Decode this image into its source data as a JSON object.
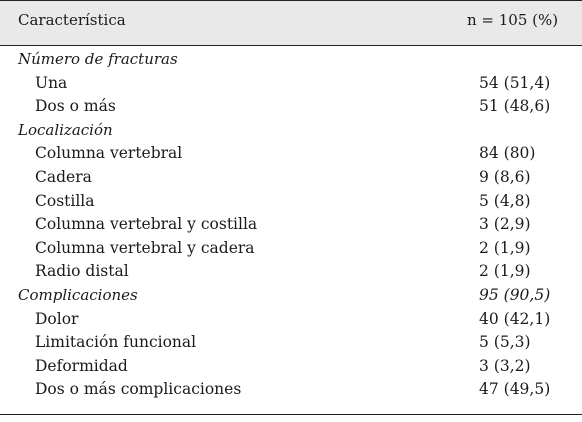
{
  "header": {
    "col1": "Característica",
    "col2": "n = 105 (%)"
  },
  "rows": [
    {
      "kind": "section",
      "label": "Número de fracturas",
      "value": ""
    },
    {
      "kind": "item",
      "label": "Una",
      "value": "54 (51,4)"
    },
    {
      "kind": "item",
      "label": "Dos o más",
      "value": "51 (48,6)"
    },
    {
      "kind": "section",
      "label": "Localización",
      "value": ""
    },
    {
      "kind": "item",
      "label": "Columna vertebral",
      "value": "84 (80)"
    },
    {
      "kind": "item",
      "label": "Cadera",
      "value": "9 (8,6)"
    },
    {
      "kind": "item",
      "label": "Costilla",
      "value": "5 (4,8)"
    },
    {
      "kind": "item",
      "label": "Columna vertebral y costilla",
      "value": "3 (2,9)"
    },
    {
      "kind": "item",
      "label": "Columna vertebral y cadera",
      "value": "2 (1,9)"
    },
    {
      "kind": "item",
      "label": "Radio distal",
      "value": "2 (1,9)"
    },
    {
      "kind": "section",
      "label": "Complicaciones",
      "value": "95 (90,5)"
    },
    {
      "kind": "item",
      "label": "Dolor",
      "value": "40 (42,1)"
    },
    {
      "kind": "item",
      "label": "Limitación funcional",
      "value": "5 (5,3)"
    },
    {
      "kind": "item",
      "label": "Deformidad",
      "value": "3 (3,2)"
    },
    {
      "kind": "item",
      "label": "Dos o más complicaciones",
      "value": "47 (49,5)"
    }
  ]
}
